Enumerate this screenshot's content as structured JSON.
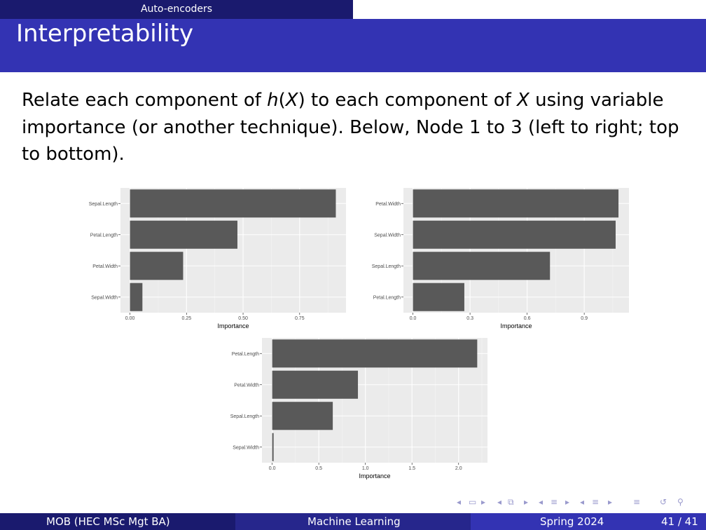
{
  "header": {
    "section": "Auto-encoders",
    "title": "Interpretability"
  },
  "body": {
    "line1_a": "Relate each component of ",
    "line1_h": "h",
    "line1_b": "(",
    "line1_X1": "X",
    "line1_c": ") to each component of ",
    "line1_X2": "X",
    "line1_d": " using variable",
    "line2": "importance (or another technique). Below, Node 1 to 3 (left to right; top",
    "line3": "to bottom)."
  },
  "chart_data": [
    {
      "type": "bar",
      "orientation": "horizontal",
      "categories": [
        "Sepal.Length",
        "Petal.Length",
        "Petal.Width",
        "Sepal.Width"
      ],
      "values": [
        0.91,
        0.475,
        0.235,
        0.055
      ],
      "xlabel": "Importance",
      "ylabel": "",
      "xticks": [
        0,
        0.25,
        0.5,
        0.75
      ],
      "xtick_labels": [
        "0.00",
        "0.25",
        "0.50",
        "0.75"
      ],
      "xlim": [
        -0.042,
        0.955
      ],
      "grid": true
    },
    {
      "type": "bar",
      "orientation": "horizontal",
      "categories": [
        "Petal.Width",
        "Sepal.Width",
        "Sepal.Length",
        "Petal.Length"
      ],
      "values": [
        1.08,
        1.065,
        0.72,
        0.27
      ],
      "xlabel": "Importance",
      "ylabel": "",
      "xticks": [
        0,
        0.3,
        0.6,
        0.9
      ],
      "xtick_labels": [
        "0.0",
        "0.3",
        "0.6",
        "0.9"
      ],
      "xlim": [
        -0.05,
        1.135
      ],
      "grid": true
    },
    {
      "type": "bar",
      "orientation": "horizontal",
      "categories": [
        "Petal.Length",
        "Petal.Width",
        "Sepal.Length",
        "Sepal.Width"
      ],
      "values": [
        2.2,
        0.92,
        0.65,
        0.015
      ],
      "xlabel": "Importance",
      "ylabel": "",
      "xticks": [
        0,
        0.5,
        1,
        1.5,
        2
      ],
      "xtick_labels": [
        "0.0",
        "0.5",
        "1.0",
        "1.5",
        "2.0"
      ],
      "xlim": [
        -0.11,
        2.31
      ],
      "grid": true
    }
  ],
  "footer": {
    "left": "MOB  (HEC MSc Mgt BA)",
    "center": "Machine Learning",
    "date": "Spring 2024",
    "page": "41 / 41"
  },
  "nav_icons": [
    "nav-prev-frame-icon",
    "nav-frame-icon",
    "nav-next-frame-icon",
    "nav-prev-subsection-icon",
    "nav-subsection-icon",
    "nav-next-subsection-icon",
    "nav-prev-section-icon",
    "nav-section-icon",
    "nav-next-section-icon",
    "nav-prev-slide-icon",
    "nav-slide-icon",
    "nav-next-slide-icon",
    "nav-appendix-icon",
    "nav-back-icon",
    "nav-search-icon"
  ],
  "colors": {
    "section_tab": "#1a1a6e",
    "title_bar": "#3333b3",
    "bar": "#595959",
    "panel": "#ebebeb"
  }
}
